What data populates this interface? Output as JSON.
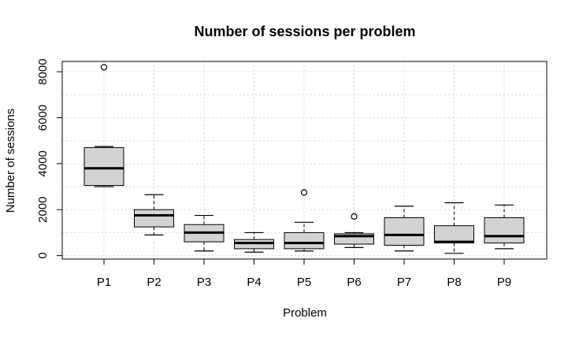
{
  "chart_data": {
    "type": "boxplot",
    "title": "Number of sessions per problem",
    "xlabel": "Problem",
    "ylabel": "Number of sessions",
    "categories": [
      "P1",
      "P2",
      "P3",
      "P4",
      "P5",
      "P6",
      "P7",
      "P8",
      "P9"
    ],
    "y_ticks": [
      "0",
      "2000",
      "4000",
      "6000",
      "8000"
    ],
    "ylim": [
      -150,
      8450
    ],
    "grid": true,
    "box_fill": "#d3d3d3",
    "boxes": [
      {
        "name": "P1",
        "whisker_low": 3000,
        "q1": 3050,
        "median": 3800,
        "q3": 4700,
        "whisker_high": 4750,
        "outliers": [
          8200
        ]
      },
      {
        "name": "P2",
        "whisker_low": 900,
        "q1": 1250,
        "median": 1750,
        "q3": 2000,
        "whisker_high": 2650,
        "outliers": []
      },
      {
        "name": "P3",
        "whisker_low": 200,
        "q1": 600,
        "median": 1000,
        "q3": 1350,
        "whisker_high": 1750,
        "outliers": []
      },
      {
        "name": "P4",
        "whisker_low": 150,
        "q1": 300,
        "median": 550,
        "q3": 700,
        "whisker_high": 1000,
        "outliers": []
      },
      {
        "name": "P5",
        "whisker_low": 200,
        "q1": 300,
        "median": 550,
        "q3": 1000,
        "whisker_high": 1450,
        "outliers": [
          2750
        ]
      },
      {
        "name": "P6",
        "whisker_low": 350,
        "q1": 500,
        "median": 850,
        "q3": 950,
        "whisker_high": 1000,
        "outliers": [
          1700
        ]
      },
      {
        "name": "P7",
        "whisker_low": 200,
        "q1": 450,
        "median": 900,
        "q3": 1650,
        "whisker_high": 2150,
        "outliers": []
      },
      {
        "name": "P8",
        "whisker_low": 100,
        "q1": 550,
        "median": 600,
        "q3": 1300,
        "whisker_high": 2300,
        "outliers": []
      },
      {
        "name": "P9",
        "whisker_low": 300,
        "q1": 550,
        "median": 850,
        "q3": 1650,
        "whisker_high": 2200,
        "outliers": []
      }
    ]
  }
}
